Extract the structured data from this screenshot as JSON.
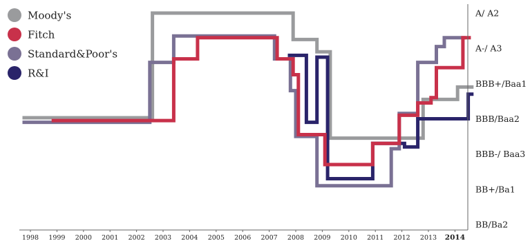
{
  "chart_data": {
    "type": "line",
    "step": true,
    "title": "",
    "xlabel": "",
    "ylabel": "",
    "x_ticks": [
      "1998",
      "1999",
      "2000",
      "2001",
      "2002",
      "2003",
      "2004",
      "2005",
      "2006",
      "2007",
      "2008",
      "2009",
      "2010",
      "2011",
      "2012",
      "2013",
      "2014"
    ],
    "x_bold_tick": "2014",
    "xlim": [
      1997.7,
      2015.0
    ],
    "y_ticks": [
      "BB/Ba2",
      "BB+/Ba1",
      "BBB-/ Baa3",
      "BBB/Baa2",
      "BBB+/Baa1",
      "A-/ A3",
      "A/ A2"
    ],
    "ylim": [
      0,
      6
    ],
    "y_axis_position": "right",
    "grid": false,
    "legend_position": "top-left",
    "series": [
      {
        "name": "Moody's",
        "color": "#9a9b9d",
        "points": [
          [
            1997.7,
            3.03
          ],
          [
            2002.6,
            3.03
          ],
          [
            2002.6,
            6.0
          ],
          [
            2007.9,
            6.0
          ],
          [
            2007.9,
            5.25
          ],
          [
            2008.8,
            5.25
          ],
          [
            2008.8,
            4.9
          ],
          [
            2009.3,
            4.9
          ],
          [
            2009.3,
            2.45
          ],
          [
            2012.8,
            2.45
          ],
          [
            2012.8,
            3.55
          ],
          [
            2014.1,
            3.55
          ],
          [
            2014.1,
            3.9
          ],
          [
            2014.7,
            3.9
          ]
        ]
      },
      {
        "name": "Fitch",
        "color": "#c8314a",
        "points": [
          [
            1998.8,
            2.95
          ],
          [
            2003.4,
            2.95
          ],
          [
            2003.4,
            4.7
          ],
          [
            2004.3,
            4.7
          ],
          [
            2004.3,
            5.3
          ],
          [
            2007.3,
            5.3
          ],
          [
            2007.3,
            4.7
          ],
          [
            2007.9,
            4.7
          ],
          [
            2007.9,
            4.25
          ],
          [
            2008.1,
            4.25
          ],
          [
            2008.1,
            2.55
          ],
          [
            2009.1,
            2.55
          ],
          [
            2009.1,
            1.7
          ],
          [
            2010.9,
            1.7
          ],
          [
            2010.9,
            2.3
          ],
          [
            2011.9,
            2.3
          ],
          [
            2011.9,
            3.1
          ],
          [
            2012.6,
            3.1
          ],
          [
            2012.6,
            3.45
          ],
          [
            2013.1,
            3.45
          ],
          [
            2013.1,
            3.6
          ],
          [
            2013.3,
            3.6
          ],
          [
            2013.3,
            4.45
          ],
          [
            2014.3,
            4.45
          ],
          [
            2014.3,
            5.3
          ],
          [
            2014.6,
            5.3
          ]
        ]
      },
      {
        "name": "Standard&Poor's",
        "color": "#7a7194",
        "points": [
          [
            1997.7,
            2.9
          ],
          [
            2002.5,
            2.9
          ],
          [
            2002.5,
            4.6
          ],
          [
            2003.4,
            4.6
          ],
          [
            2003.4,
            5.35
          ],
          [
            2007.2,
            5.35
          ],
          [
            2007.2,
            4.7
          ],
          [
            2007.8,
            4.7
          ],
          [
            2007.8,
            3.8
          ],
          [
            2008.0,
            3.8
          ],
          [
            2008.0,
            2.5
          ],
          [
            2008.8,
            2.5
          ],
          [
            2008.8,
            1.1
          ],
          [
            2009.6,
            1.1
          ],
          [
            2009.6,
            1.1
          ],
          [
            2011.6,
            1.1
          ],
          [
            2011.6,
            2.15
          ],
          [
            2011.9,
            2.15
          ],
          [
            2011.9,
            3.15
          ],
          [
            2012.6,
            3.15
          ],
          [
            2012.6,
            4.6
          ],
          [
            2013.3,
            4.6
          ],
          [
            2013.3,
            5.05
          ],
          [
            2013.6,
            5.05
          ],
          [
            2013.6,
            5.3
          ],
          [
            2014.4,
            5.3
          ]
        ]
      },
      {
        "name": "R&I",
        "color": "#2a246a",
        "points": [
          [
            2007.7,
            4.8
          ],
          [
            2008.4,
            4.8
          ],
          [
            2008.4,
            2.9
          ],
          [
            2008.8,
            2.9
          ],
          [
            2008.8,
            4.75
          ],
          [
            2009.2,
            4.75
          ],
          [
            2009.2,
            1.3
          ],
          [
            2010.9,
            1.3
          ],
          [
            2010.9,
            2.3
          ],
          [
            2012.1,
            2.3
          ],
          [
            2012.1,
            2.2
          ],
          [
            2012.6,
            2.2
          ],
          [
            2012.6,
            3.0
          ],
          [
            2014.5,
            3.0
          ],
          [
            2014.5,
            3.7
          ],
          [
            2014.7,
            3.7
          ]
        ]
      }
    ]
  }
}
